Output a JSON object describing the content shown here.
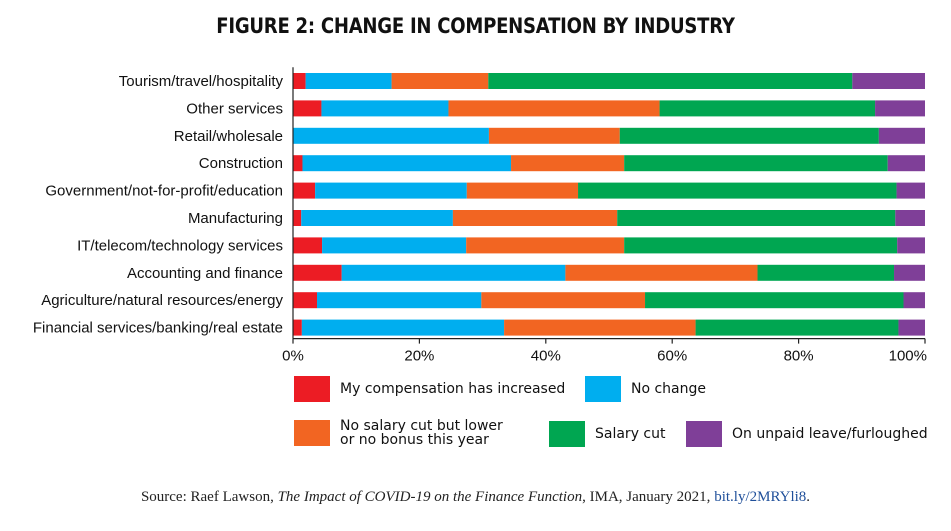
{
  "chart_data": {
    "type": "bar",
    "orientation": "horizontal",
    "stacked": true,
    "title": "FIGURE 2: CHANGE IN COMPENSATION BY INDUSTRY",
    "categories": [
      "Tourism/travel/hospitality",
      "Other services",
      "Retail/wholesale",
      "Construction",
      "Government/not-for-profit/education",
      "Manufacturing",
      "IT/telecom/technology services",
      "Accounting and finance",
      "Agriculture/natural resources/energy",
      "Financial services/banking/real estate"
    ],
    "series": [
      {
        "name": "My compensation has increased",
        "color": "#ec1c24",
        "values": [
          2,
          4.5,
          0,
          1.5,
          3.5,
          1.3,
          4.6,
          7.7,
          3.8,
          1.4
        ]
      },
      {
        "name": "No change",
        "color": "#00aeef",
        "values": [
          13.6,
          20.1,
          31,
          33,
          24,
          24,
          22.8,
          35.4,
          26,
          32
        ]
      },
      {
        "name": "No salary cut but lower\nor no bonus this year",
        "color": "#f26522",
        "values": [
          15.3,
          33.4,
          20.7,
          17.9,
          17.6,
          26,
          25,
          30.4,
          25.9,
          30.3
        ]
      },
      {
        "name": "Salary cut",
        "color": "#00a651",
        "values": [
          57.6,
          34.1,
          41,
          41.7,
          50.4,
          44,
          43.2,
          21.6,
          40.9,
          32.1
        ]
      },
      {
        "name": "On unpaid leave/furloughed",
        "color": "#7f3f98",
        "values": [
          11.5,
          7.9,
          7.3,
          5.9,
          4.5,
          4.7,
          4.4,
          4.9,
          3.4,
          4.2
        ]
      }
    ],
    "x_ticks": [
      "0%",
      "20%",
      "40%",
      "60%",
      "80%",
      "100%"
    ],
    "xlim": [
      0,
      100
    ],
    "legend_position": "bottom",
    "grid": false
  },
  "source": {
    "prefix": "Source: Raef Lawson, ",
    "work": "The Impact of COVID-19 on the Finance Function",
    "suffix": ", IMA, January 2021, ",
    "link": "bit.ly/2MRYli8",
    "end": "."
  }
}
